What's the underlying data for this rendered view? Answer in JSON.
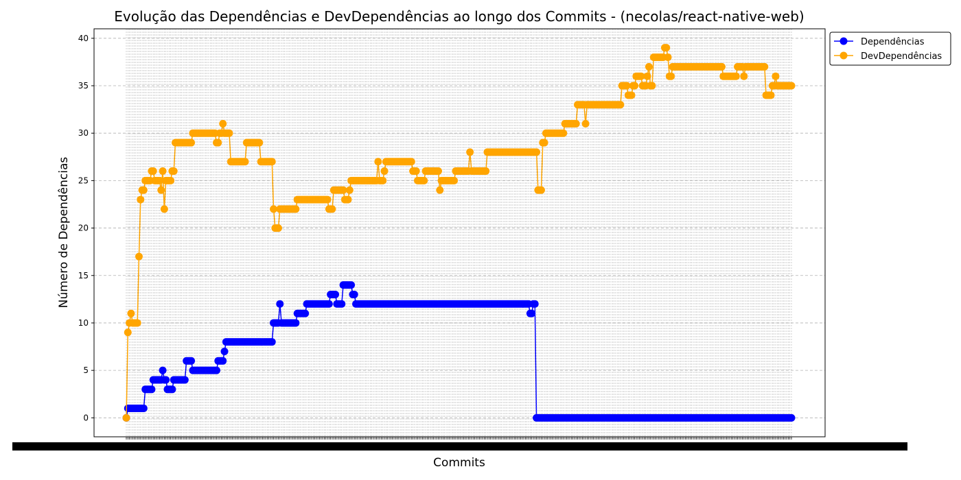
{
  "chart_data": {
    "type": "line",
    "title": "Evolução das Dependências e DevDependências ao longo dos Commits - (necolas/react-native-web)",
    "xlabel": "Commits",
    "ylabel": "Número de Dependências",
    "ylim": [
      -2,
      41
    ],
    "yticks": [
      0,
      5,
      10,
      15,
      20,
      25,
      30,
      35,
      40
    ],
    "commit_count": 421,
    "grid": "dashed",
    "legend_position": "outside-top-right",
    "series": [
      {
        "name": "Dependências",
        "color": "#0000ff",
        "steps": [
          [
            0,
            0
          ],
          [
            1,
            1
          ],
          [
            12,
            3
          ],
          [
            17,
            4
          ],
          [
            23,
            5
          ],
          [
            24,
            4
          ],
          [
            26,
            3
          ],
          [
            30,
            4
          ],
          [
            38,
            6
          ],
          [
            42,
            5
          ],
          [
            58,
            6
          ],
          [
            62,
            7
          ],
          [
            63,
            8
          ],
          [
            93,
            10
          ],
          [
            97,
            12
          ],
          [
            98,
            10
          ],
          [
            108,
            11
          ],
          [
            114,
            12
          ],
          [
            129,
            13
          ],
          [
            133,
            12
          ],
          [
            137,
            14
          ],
          [
            143,
            13
          ],
          [
            145,
            12
          ],
          [
            255,
            11
          ],
          [
            257,
            12
          ],
          [
            259,
            0
          ],
          [
            420,
            0
          ]
        ]
      },
      {
        "name": "DevDependências",
        "color": "#ffa500",
        "steps": [
          [
            0,
            0
          ],
          [
            1,
            9
          ],
          [
            2,
            10
          ],
          [
            3,
            11
          ],
          [
            4,
            10
          ],
          [
            8,
            17
          ],
          [
            9,
            23
          ],
          [
            10,
            24
          ],
          [
            12,
            25
          ],
          [
            16,
            26
          ],
          [
            18,
            25
          ],
          [
            22,
            24
          ],
          [
            23,
            26
          ],
          [
            24,
            22
          ],
          [
            25,
            25
          ],
          [
            29,
            26
          ],
          [
            31,
            29
          ],
          [
            42,
            30
          ],
          [
            57,
            29
          ],
          [
            59,
            30
          ],
          [
            61,
            31
          ],
          [
            62,
            30
          ],
          [
            66,
            27
          ],
          [
            76,
            29
          ],
          [
            85,
            27
          ],
          [
            93,
            22
          ],
          [
            94,
            20
          ],
          [
            97,
            22
          ],
          [
            108,
            23
          ],
          [
            128,
            22
          ],
          [
            131,
            24
          ],
          [
            138,
            23
          ],
          [
            141,
            24
          ],
          [
            142,
            25
          ],
          [
            159,
            27
          ],
          [
            160,
            25
          ],
          [
            163,
            26
          ],
          [
            164,
            27
          ],
          [
            181,
            26
          ],
          [
            184,
            25
          ],
          [
            189,
            26
          ],
          [
            198,
            24
          ],
          [
            199,
            25
          ],
          [
            208,
            26
          ],
          [
            217,
            28
          ],
          [
            218,
            26
          ],
          [
            228,
            28
          ],
          [
            260,
            24
          ],
          [
            263,
            29
          ],
          [
            265,
            30
          ],
          [
            277,
            31
          ],
          [
            285,
            33
          ],
          [
            290,
            31
          ],
          [
            291,
            33
          ],
          [
            313,
            35
          ],
          [
            317,
            34
          ],
          [
            320,
            35
          ],
          [
            322,
            36
          ],
          [
            326,
            35
          ],
          [
            329,
            36
          ],
          [
            330,
            37
          ],
          [
            331,
            35
          ],
          [
            333,
            38
          ],
          [
            340,
            39
          ],
          [
            342,
            38
          ],
          [
            343,
            36
          ],
          [
            345,
            37
          ],
          [
            377,
            36
          ],
          [
            386,
            37
          ],
          [
            390,
            36
          ],
          [
            391,
            37
          ],
          [
            404,
            34
          ],
          [
            408,
            35
          ],
          [
            410,
            36
          ],
          [
            411,
            35
          ],
          [
            420,
            35
          ]
        ]
      }
    ]
  }
}
